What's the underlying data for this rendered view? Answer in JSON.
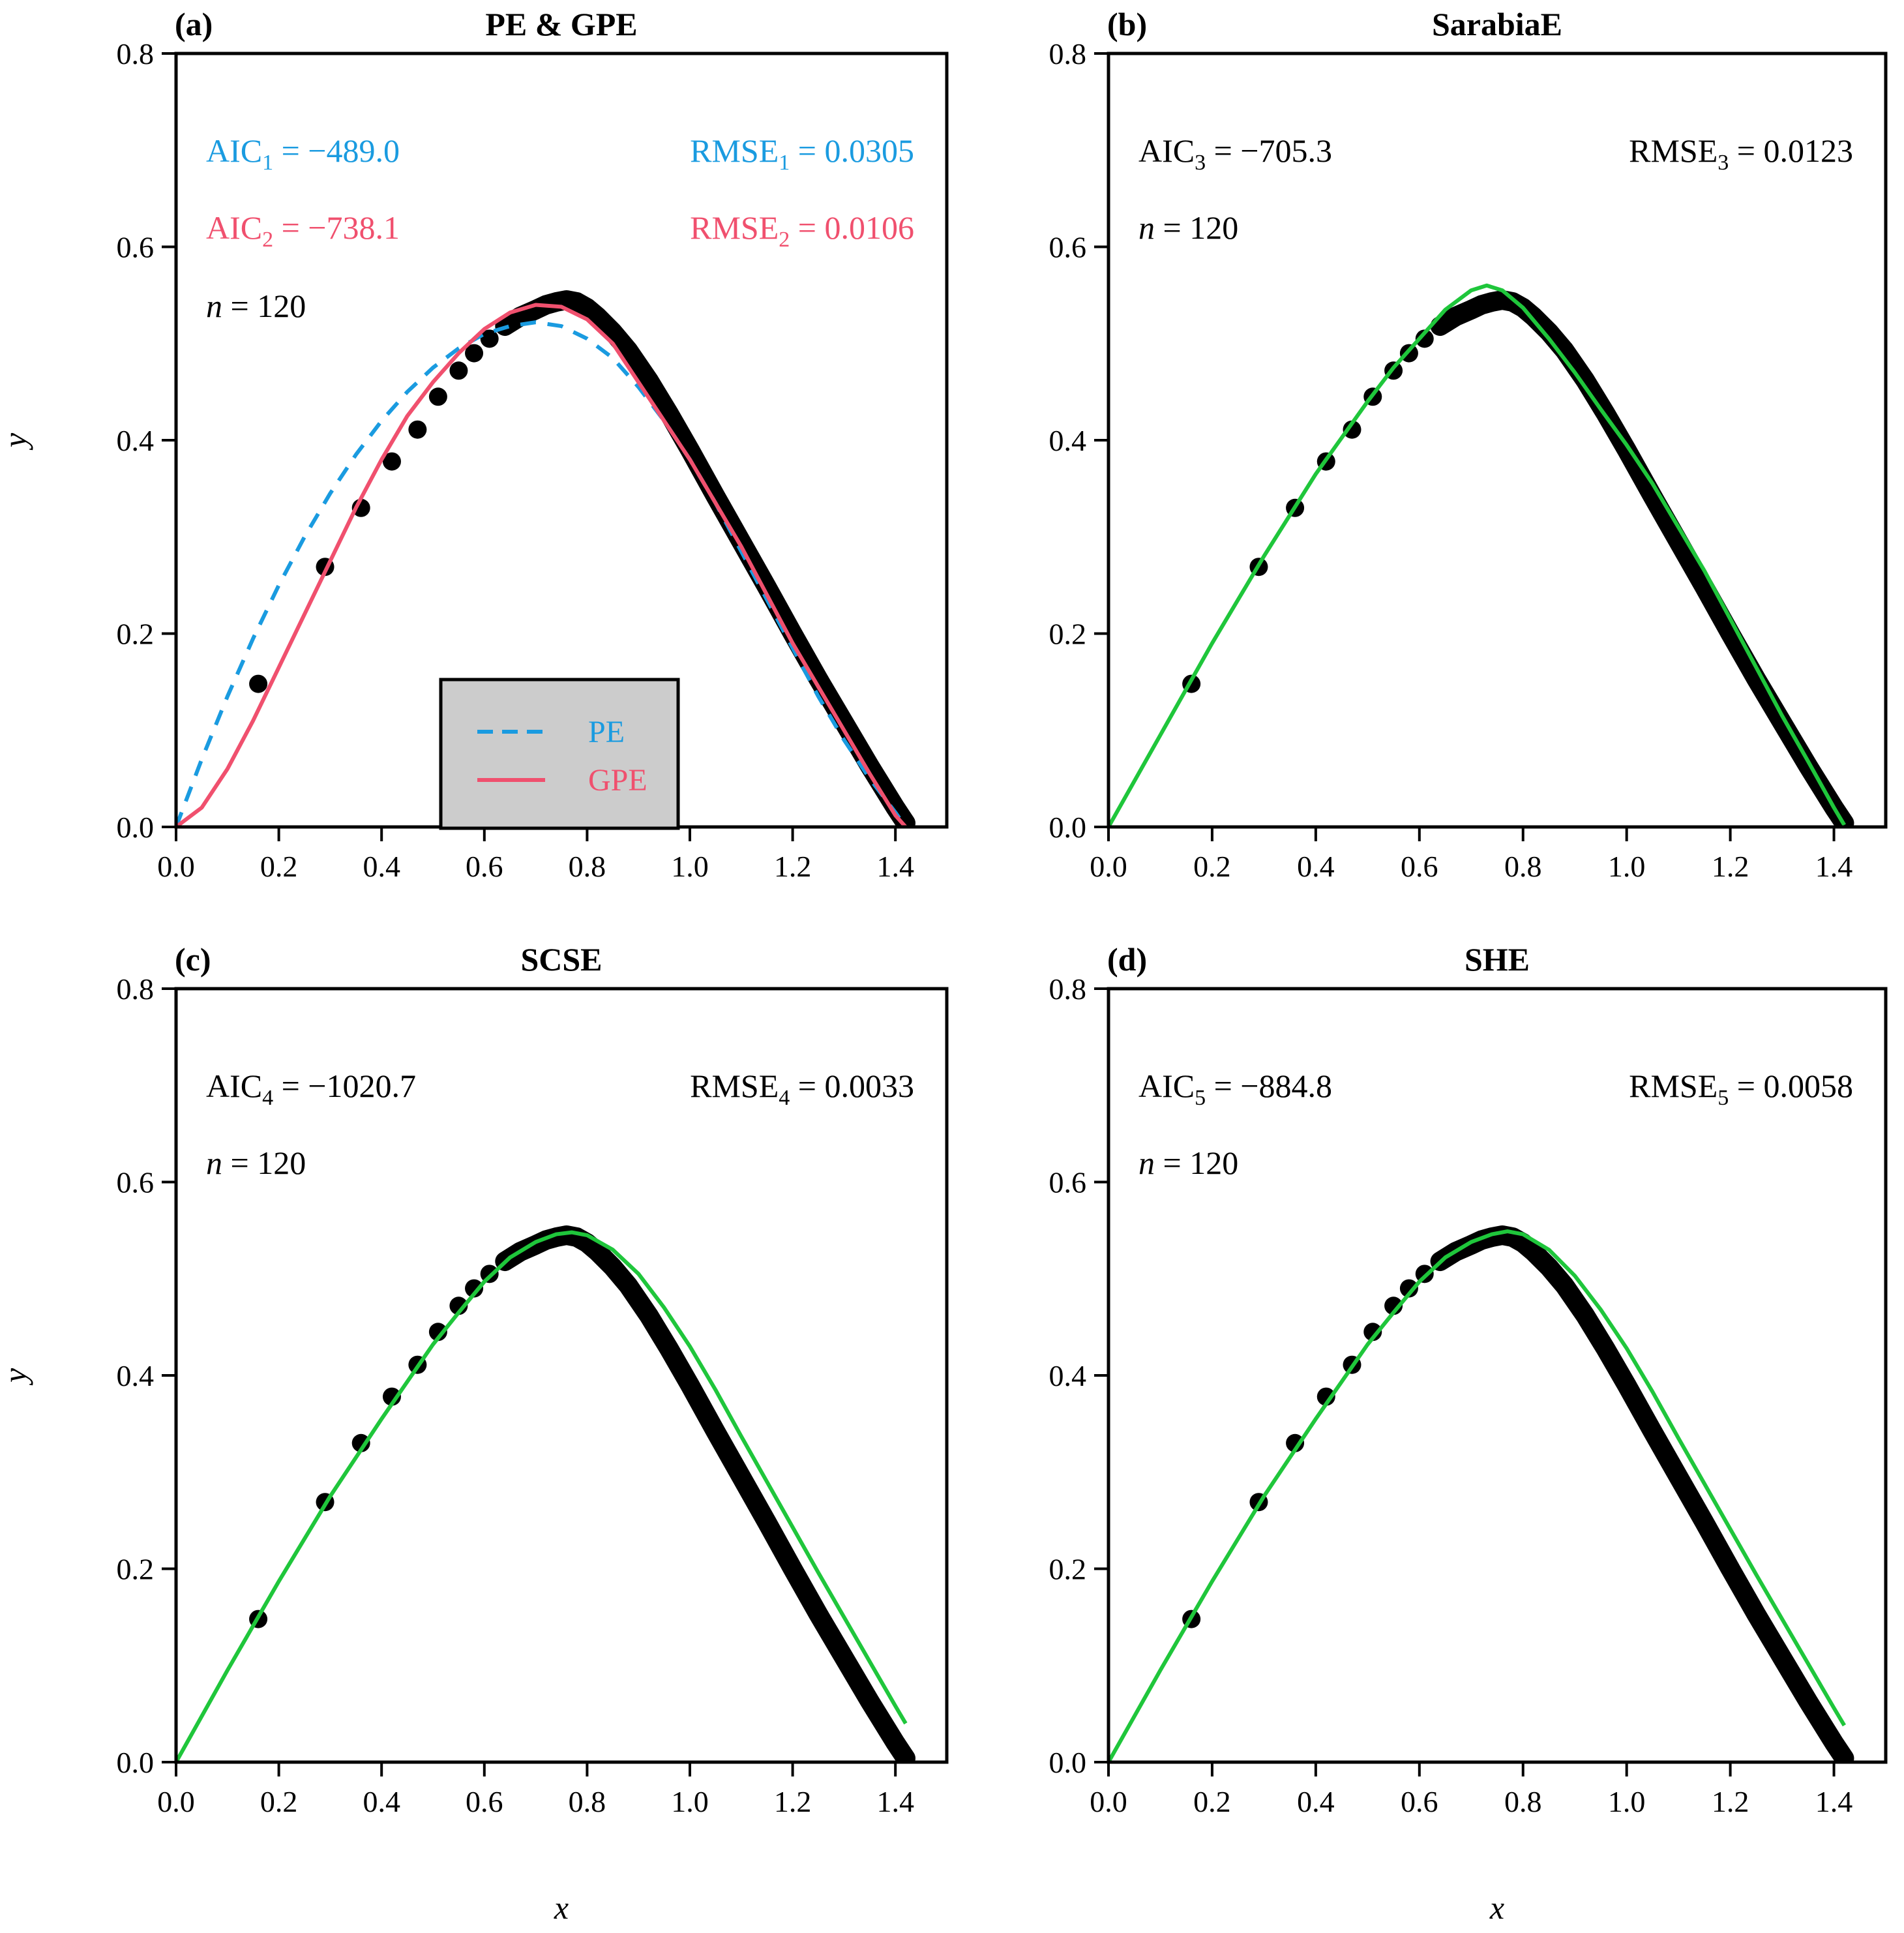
{
  "figure": {
    "xlabel": "x",
    "ylabel": "y",
    "colors": {
      "pe": "#1a9be0",
      "gpe": "#f0506e",
      "fit": "#1fc63b",
      "points": "#000000",
      "legend_bg": "#cccccc"
    }
  },
  "chart_data": [
    {
      "type": "scatter",
      "letter": "(a)",
      "title": "PE & GPE",
      "xlim": [
        0,
        1.5
      ],
      "ylim": [
        0,
        0.8
      ],
      "xticks": [
        "0.0",
        "0.2",
        "0.4",
        "0.6",
        "0.8",
        "1.0",
        "1.2",
        "1.4"
      ],
      "yticks": [
        "0.0",
        "0.2",
        "0.4",
        "0.6",
        "0.8"
      ],
      "legend": {
        "position": "bottom-center",
        "entries": [
          {
            "label": "PE",
            "style": "dashed",
            "color": "#1a9be0"
          },
          {
            "label": "GPE",
            "style": "solid",
            "color": "#f0506e"
          }
        ]
      },
      "annotations": [
        {
          "parts": [
            {
              "t": "AIC"
            },
            {
              "t": "1",
              "sub": true
            },
            {
              "t": " = −489.0"
            }
          ],
          "color": "#1a9be0",
          "pos": "top-left-1"
        },
        {
          "parts": [
            {
              "t": "RMSE"
            },
            {
              "t": "1",
              "sub": true
            },
            {
              "t": " = 0.0305"
            }
          ],
          "color": "#1a9be0",
          "pos": "top-right-1"
        },
        {
          "parts": [
            {
              "t": "AIC"
            },
            {
              "t": "2",
              "sub": true
            },
            {
              "t": " = −738.1"
            }
          ],
          "color": "#f0506e",
          "pos": "top-left-2"
        },
        {
          "parts": [
            {
              "t": "RMSE"
            },
            {
              "t": "2",
              "sub": true
            },
            {
              "t": " = 0.0106"
            }
          ],
          "color": "#f0506e",
          "pos": "top-right-2"
        },
        {
          "parts": [
            {
              "t": "n",
              "italic": true
            },
            {
              "t": " = 120"
            }
          ],
          "color": "#000000",
          "pos": "top-left-3"
        }
      ],
      "curves": [
        {
          "name": "PE",
          "style": "dashed",
          "color": "#1a9be0",
          "x": [
            0.0,
            0.05,
            0.1,
            0.15,
            0.2,
            0.25,
            0.3,
            0.35,
            0.4,
            0.45,
            0.5,
            0.55,
            0.6,
            0.65,
            0.7,
            0.75,
            0.8,
            0.85,
            0.9,
            0.95,
            1.0,
            1.05,
            1.1,
            1.15,
            1.2,
            1.25,
            1.3,
            1.35,
            1.4,
            1.42
          ],
          "y": [
            0.0,
            0.07,
            0.135,
            0.195,
            0.25,
            0.3,
            0.345,
            0.385,
            0.42,
            0.45,
            0.475,
            0.495,
            0.51,
            0.518,
            0.522,
            0.518,
            0.505,
            0.485,
            0.455,
            0.42,
            0.38,
            0.335,
            0.285,
            0.235,
            0.185,
            0.135,
            0.09,
            0.05,
            0.015,
            0.0
          ]
        },
        {
          "name": "GPE",
          "style": "solid",
          "color": "#f0506e",
          "x": [
            0.0,
            0.05,
            0.1,
            0.15,
            0.2,
            0.25,
            0.3,
            0.35,
            0.4,
            0.45,
            0.5,
            0.55,
            0.6,
            0.65,
            0.7,
            0.75,
            0.8,
            0.85,
            0.9,
            0.95,
            1.0,
            1.05,
            1.1,
            1.15,
            1.2,
            1.25,
            1.3,
            1.35,
            1.4,
            1.42
          ],
          "y": [
            0.0,
            0.02,
            0.06,
            0.11,
            0.165,
            0.22,
            0.275,
            0.33,
            0.38,
            0.425,
            0.46,
            0.49,
            0.515,
            0.532,
            0.54,
            0.538,
            0.525,
            0.5,
            0.46,
            0.42,
            0.38,
            0.335,
            0.29,
            0.24,
            0.19,
            0.145,
            0.1,
            0.055,
            0.012,
            0.0
          ]
        }
      ],
      "points": {
        "x": [
          0.16,
          0.29,
          0.36,
          0.42,
          0.47,
          0.51,
          0.55,
          0.58,
          0.61,
          0.64,
          0.67,
          0.7,
          0.72,
          0.74,
          0.76,
          0.78,
          0.8,
          0.82,
          0.85,
          0.88,
          0.92,
          0.96,
          1.0,
          1.05,
          1.1,
          1.15,
          1.2,
          1.25,
          1.3,
          1.35,
          1.4,
          1.42
        ],
        "y": [
          0.148,
          0.269,
          0.33,
          0.378,
          0.411,
          0.445,
          0.472,
          0.49,
          0.505,
          0.518,
          0.528,
          0.535,
          0.54,
          0.543,
          0.545,
          0.543,
          0.537,
          0.528,
          0.512,
          0.493,
          0.462,
          0.427,
          0.39,
          0.342,
          0.295,
          0.248,
          0.2,
          0.153,
          0.108,
          0.063,
          0.02,
          0.004
        ]
      }
    },
    {
      "type": "scatter",
      "letter": "(b)",
      "title": "SarabiaE",
      "xlim": [
        0,
        1.5
      ],
      "ylim": [
        0,
        0.8
      ],
      "xticks": [
        "0.0",
        "0.2",
        "0.4",
        "0.6",
        "0.8",
        "1.0",
        "1.2",
        "1.4"
      ],
      "yticks": [
        "0.0",
        "0.2",
        "0.4",
        "0.6",
        "0.8"
      ],
      "annotations": [
        {
          "parts": [
            {
              "t": "AIC"
            },
            {
              "t": "3",
              "sub": true
            },
            {
              "t": " = −705.3"
            }
          ],
          "color": "#000000",
          "pos": "top-left-1"
        },
        {
          "parts": [
            {
              "t": "RMSE"
            },
            {
              "t": "3",
              "sub": true
            },
            {
              "t": " = 0.0123"
            }
          ],
          "color": "#000000",
          "pos": "top-right-1"
        },
        {
          "parts": [
            {
              "t": "n",
              "italic": true
            },
            {
              "t": " = 120"
            }
          ],
          "color": "#000000",
          "pos": "top-left-2"
        }
      ],
      "curves": [
        {
          "name": "SarabiaE",
          "style": "solid",
          "color": "#1fc63b",
          "x": [
            0.0,
            0.1,
            0.2,
            0.3,
            0.4,
            0.5,
            0.55,
            0.6,
            0.65,
            0.7,
            0.73,
            0.76,
            0.8,
            0.85,
            0.9,
            0.95,
            1.0,
            1.05,
            1.1,
            1.15,
            1.2,
            1.25,
            1.3,
            1.35,
            1.4,
            1.42
          ],
          "y": [
            0.0,
            0.095,
            0.19,
            0.28,
            0.365,
            0.44,
            0.475,
            0.505,
            0.535,
            0.555,
            0.56,
            0.555,
            0.537,
            0.505,
            0.47,
            0.432,
            0.395,
            0.355,
            0.31,
            0.265,
            0.215,
            0.165,
            0.115,
            0.068,
            0.02,
            0.002
          ]
        }
      ],
      "points": {
        "x": [
          0.16,
          0.29,
          0.36,
          0.42,
          0.47,
          0.51,
          0.55,
          0.58,
          0.61,
          0.64,
          0.67,
          0.7,
          0.72,
          0.74,
          0.76,
          0.78,
          0.8,
          0.82,
          0.85,
          0.88,
          0.92,
          0.96,
          1.0,
          1.05,
          1.1,
          1.15,
          1.2,
          1.25,
          1.3,
          1.35,
          1.4,
          1.42
        ],
        "y": [
          0.148,
          0.269,
          0.33,
          0.378,
          0.411,
          0.445,
          0.472,
          0.49,
          0.505,
          0.518,
          0.528,
          0.535,
          0.54,
          0.543,
          0.545,
          0.543,
          0.537,
          0.528,
          0.512,
          0.493,
          0.462,
          0.427,
          0.39,
          0.342,
          0.295,
          0.248,
          0.2,
          0.153,
          0.108,
          0.063,
          0.02,
          0.004
        ]
      }
    },
    {
      "type": "scatter",
      "letter": "(c)",
      "title": "SCSE",
      "xlim": [
        0,
        1.5
      ],
      "ylim": [
        0,
        0.8
      ],
      "xticks": [
        "0.0",
        "0.2",
        "0.4",
        "0.6",
        "0.8",
        "1.0",
        "1.2",
        "1.4"
      ],
      "yticks": [
        "0.0",
        "0.2",
        "0.4",
        "0.6",
        "0.8"
      ],
      "annotations": [
        {
          "parts": [
            {
              "t": "AIC"
            },
            {
              "t": "4",
              "sub": true
            },
            {
              "t": " = −1020.7"
            }
          ],
          "color": "#000000",
          "pos": "top-left-1"
        },
        {
          "parts": [
            {
              "t": "RMSE"
            },
            {
              "t": "4",
              "sub": true
            },
            {
              "t": " = 0.0033"
            }
          ],
          "color": "#000000",
          "pos": "top-right-1"
        },
        {
          "parts": [
            {
              "t": "n",
              "italic": true
            },
            {
              "t": " = 120"
            }
          ],
          "color": "#000000",
          "pos": "top-left-2"
        }
      ],
      "curves": [
        {
          "name": "SCSE",
          "style": "solid",
          "color": "#1fc63b",
          "x": [
            0.0,
            0.1,
            0.2,
            0.3,
            0.4,
            0.5,
            0.55,
            0.6,
            0.65,
            0.7,
            0.74,
            0.77,
            0.8,
            0.85,
            0.9,
            0.95,
            1.0,
            1.05,
            1.1,
            1.15,
            1.2,
            1.25,
            1.3,
            1.35,
            1.4,
            1.42
          ],
          "y": [
            0.0,
            0.095,
            0.187,
            0.275,
            0.355,
            0.432,
            0.465,
            0.497,
            0.522,
            0.538,
            0.546,
            0.548,
            0.545,
            0.53,
            0.505,
            0.47,
            0.43,
            0.385,
            0.337,
            0.29,
            0.243,
            0.196,
            0.15,
            0.104,
            0.058,
            0.04
          ]
        }
      ],
      "points": {
        "x": [
          0.16,
          0.29,
          0.36,
          0.42,
          0.47,
          0.51,
          0.55,
          0.58,
          0.61,
          0.64,
          0.67,
          0.7,
          0.72,
          0.74,
          0.76,
          0.78,
          0.8,
          0.82,
          0.85,
          0.88,
          0.92,
          0.96,
          1.0,
          1.05,
          1.1,
          1.15,
          1.2,
          1.25,
          1.3,
          1.35,
          1.4,
          1.42
        ],
        "y": [
          0.148,
          0.269,
          0.33,
          0.378,
          0.411,
          0.445,
          0.472,
          0.49,
          0.505,
          0.518,
          0.528,
          0.535,
          0.54,
          0.543,
          0.545,
          0.543,
          0.537,
          0.528,
          0.512,
          0.493,
          0.462,
          0.427,
          0.39,
          0.342,
          0.295,
          0.248,
          0.2,
          0.153,
          0.108,
          0.063,
          0.02,
          0.004
        ]
      }
    },
    {
      "type": "scatter",
      "letter": "(d)",
      "title": "SHE",
      "xlim": [
        0,
        1.5
      ],
      "ylim": [
        0,
        0.8
      ],
      "xticks": [
        "0.0",
        "0.2",
        "0.4",
        "0.6",
        "0.8",
        "1.0",
        "1.2",
        "1.4"
      ],
      "yticks": [
        "0.0",
        "0.2",
        "0.4",
        "0.6",
        "0.8"
      ],
      "annotations": [
        {
          "parts": [
            {
              "t": "AIC"
            },
            {
              "t": "5",
              "sub": true
            },
            {
              "t": " = −884.8"
            }
          ],
          "color": "#000000",
          "pos": "top-left-1"
        },
        {
          "parts": [
            {
              "t": "RMSE"
            },
            {
              "t": "5",
              "sub": true
            },
            {
              "t": " = 0.0058"
            }
          ],
          "color": "#000000",
          "pos": "top-right-1"
        },
        {
          "parts": [
            {
              "t": "n",
              "italic": true
            },
            {
              "t": " = 120"
            }
          ],
          "color": "#000000",
          "pos": "top-left-2"
        }
      ],
      "curves": [
        {
          "name": "SHE",
          "style": "solid",
          "color": "#1fc63b",
          "x": [
            0.0,
            0.1,
            0.2,
            0.3,
            0.4,
            0.5,
            0.55,
            0.6,
            0.65,
            0.7,
            0.74,
            0.77,
            0.8,
            0.85,
            0.9,
            0.95,
            1.0,
            1.05,
            1.1,
            1.15,
            1.2,
            1.25,
            1.3,
            1.35,
            1.4,
            1.42
          ],
          "y": [
            0.0,
            0.095,
            0.187,
            0.275,
            0.355,
            0.432,
            0.465,
            0.497,
            0.522,
            0.538,
            0.546,
            0.549,
            0.546,
            0.53,
            0.503,
            0.468,
            0.428,
            0.383,
            0.335,
            0.288,
            0.241,
            0.194,
            0.148,
            0.102,
            0.056,
            0.038
          ]
        }
      ],
      "points": {
        "x": [
          0.16,
          0.29,
          0.36,
          0.42,
          0.47,
          0.51,
          0.55,
          0.58,
          0.61,
          0.64,
          0.67,
          0.7,
          0.72,
          0.74,
          0.76,
          0.78,
          0.8,
          0.82,
          0.85,
          0.88,
          0.92,
          0.96,
          1.0,
          1.05,
          1.1,
          1.15,
          1.2,
          1.25,
          1.3,
          1.35,
          1.4,
          1.42
        ],
        "y": [
          0.148,
          0.269,
          0.33,
          0.378,
          0.411,
          0.445,
          0.472,
          0.49,
          0.505,
          0.518,
          0.528,
          0.535,
          0.54,
          0.543,
          0.545,
          0.543,
          0.537,
          0.528,
          0.512,
          0.493,
          0.462,
          0.427,
          0.39,
          0.342,
          0.295,
          0.248,
          0.2,
          0.153,
          0.108,
          0.063,
          0.02,
          0.004
        ]
      }
    }
  ]
}
